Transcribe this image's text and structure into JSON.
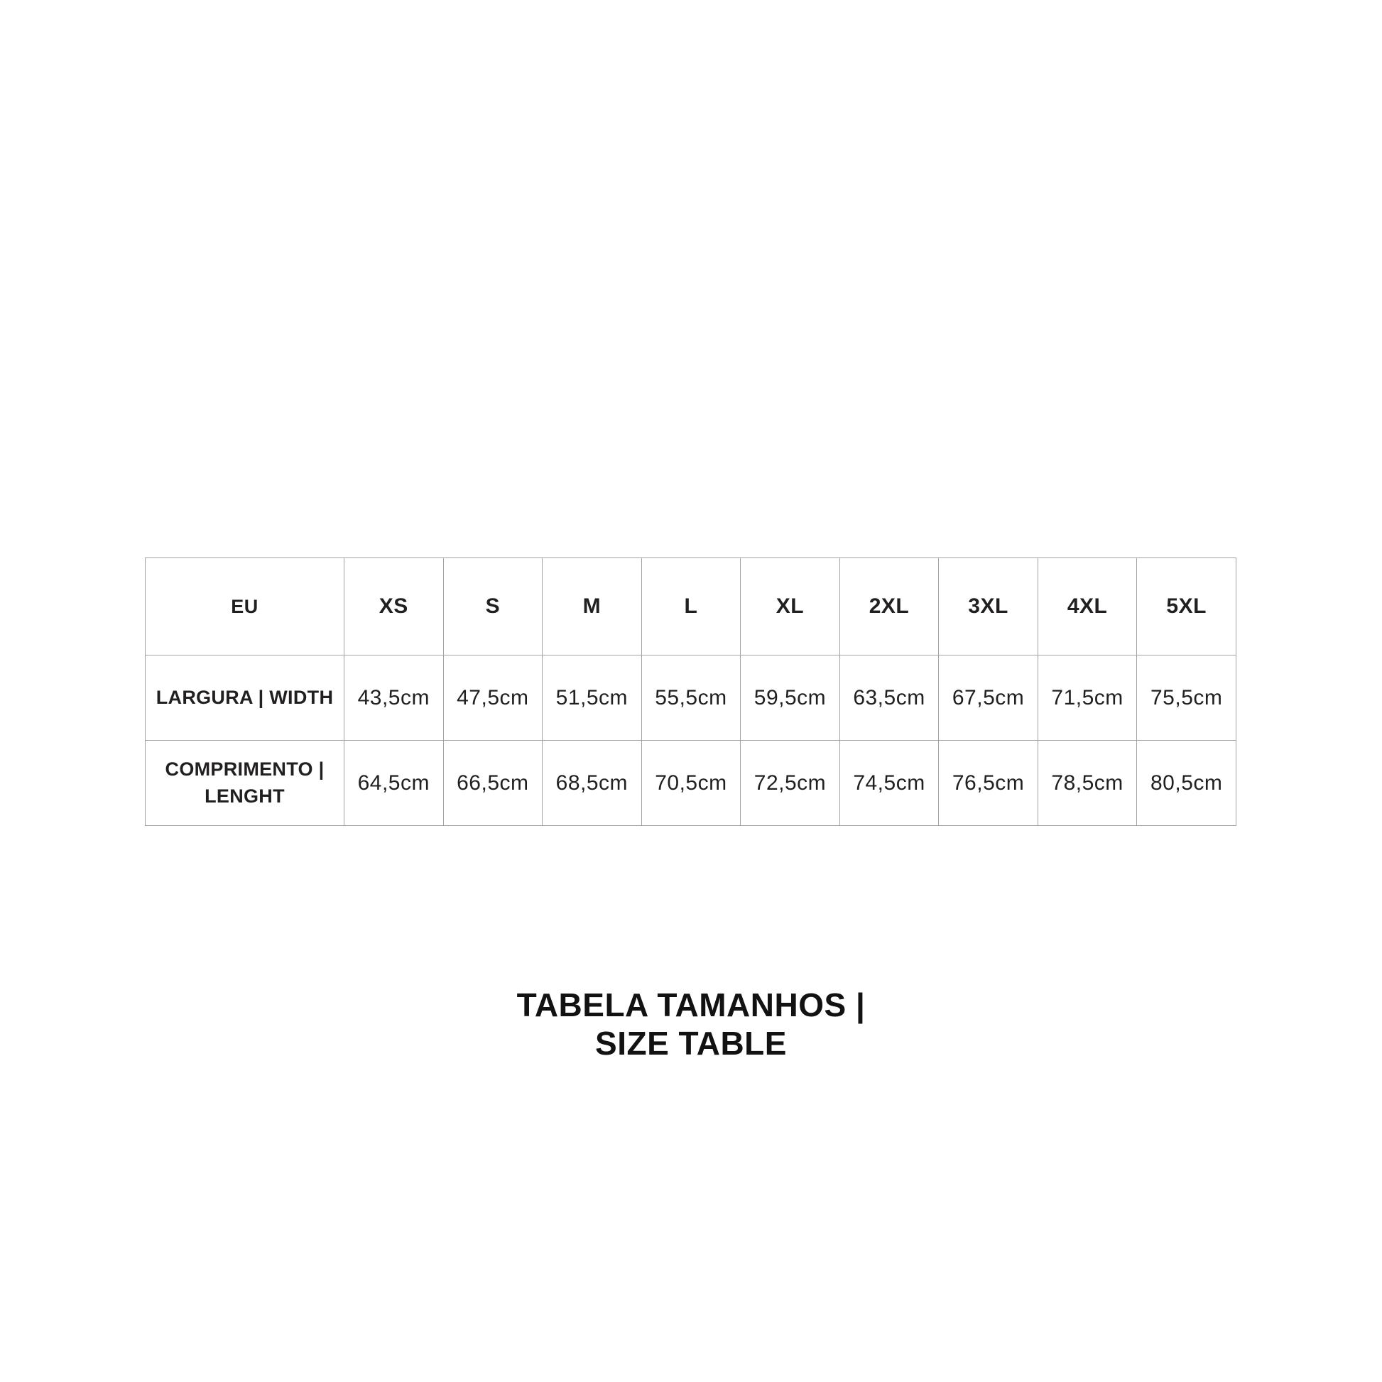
{
  "theme": {
    "accent_color": "#E8671E",
    "border_color": "#A3A3A3",
    "text_color": "#211F1F"
  },
  "table": {
    "corner_label": "EU",
    "size_headers": [
      "XS",
      "S",
      "M",
      "L",
      "XL",
      "2XL",
      "3XL",
      "4XL",
      "5XL"
    ],
    "rows": [
      {
        "label": "LARGURA | WIDTH",
        "values": [
          "43,5cm",
          "47,5cm",
          "51,5cm",
          "55,5cm",
          "59,5cm",
          "63,5cm",
          "67,5cm",
          "71,5cm",
          "75,5cm"
        ]
      },
      {
        "label": "COMPRIMENTO | LENGHT",
        "values": [
          "64,5cm",
          "66,5cm",
          "68,5cm",
          "70,5cm",
          "72,5cm",
          "74,5cm",
          "76,5cm",
          "78,5cm",
          "80,5cm"
        ]
      }
    ]
  },
  "caption": {
    "line1": "TABELA TAMANHOS |",
    "line2": "SIZE TABLE"
  },
  "chart_data": {
    "type": "table",
    "title": "TABELA TAMANHOS | SIZE TABLE",
    "columns": [
      "EU",
      "XS",
      "S",
      "M",
      "L",
      "XL",
      "2XL",
      "3XL",
      "4XL",
      "5XL"
    ],
    "rows": [
      [
        "LARGURA | WIDTH",
        "43,5cm",
        "47,5cm",
        "51,5cm",
        "55,5cm",
        "59,5cm",
        "63,5cm",
        "67,5cm",
        "71,5cm",
        "75,5cm"
      ],
      [
        "COMPRIMENTO | LENGHT",
        "64,5cm",
        "66,5cm",
        "68,5cm",
        "70,5cm",
        "72,5cm",
        "74,5cm",
        "76,5cm",
        "78,5cm",
        "80,5cm"
      ]
    ]
  }
}
